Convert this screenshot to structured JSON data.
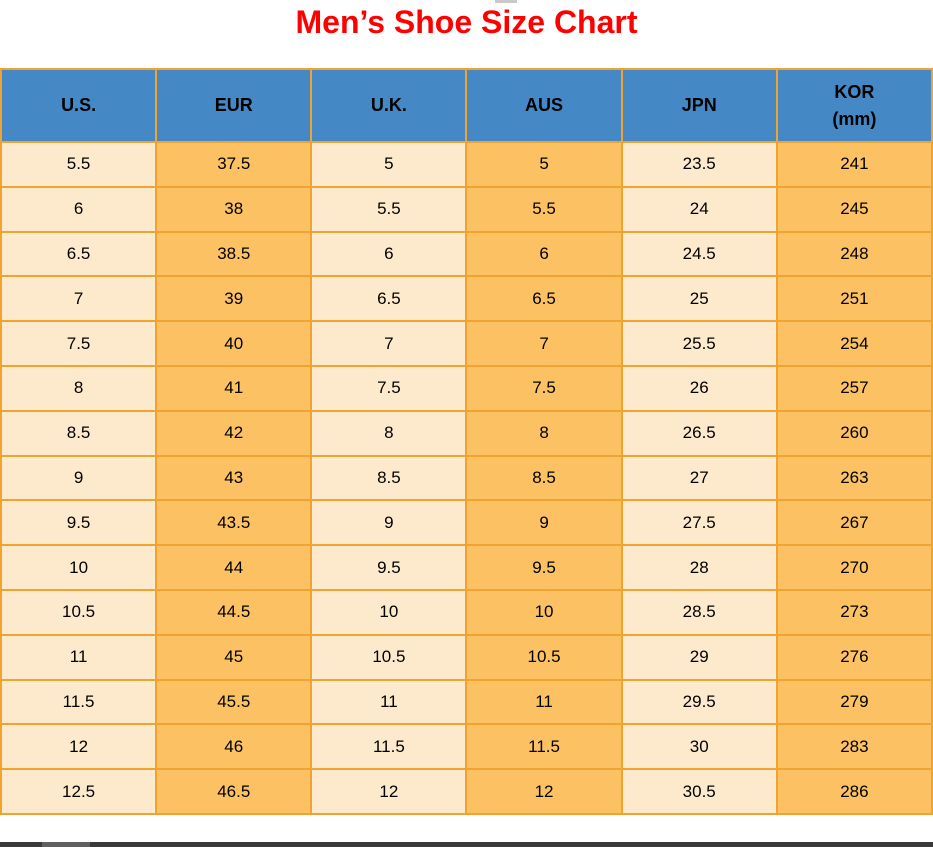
{
  "title": "Men’s Shoe Size Chart",
  "colors": {
    "title_red": "#ff0000",
    "header_bg": "#4489c6",
    "border": "#f0a330",
    "cream_column": "#fdeacd",
    "orange_column": "#fcc163",
    "text": "#000000",
    "scrollbar_track": "#3a3a3a",
    "scrollbar_thumb": "#606060"
  },
  "chart_data": {
    "type": "table",
    "title": "Men’s Shoe Size Chart",
    "columns": [
      "U.S.",
      "EUR",
      "U.K.",
      "AUS",
      "JPN",
      "KOR (mm)"
    ],
    "header_lines": [
      [
        "U.S."
      ],
      [
        "EUR"
      ],
      [
        "U.K."
      ],
      [
        "AUS"
      ],
      [
        "JPN"
      ],
      [
        "KOR",
        "(mm)"
      ]
    ],
    "rows": [
      [
        "5.5",
        "37.5",
        "5",
        "5",
        "23.5",
        "241"
      ],
      [
        "6",
        "38",
        "5.5",
        "5.5",
        "24",
        "245"
      ],
      [
        "6.5",
        "38.5",
        "6",
        "6",
        "24.5",
        "248"
      ],
      [
        "7",
        "39",
        "6.5",
        "6.5",
        "25",
        "251"
      ],
      [
        "7.5",
        "40",
        "7",
        "7",
        "25.5",
        "254"
      ],
      [
        "8",
        "41",
        "7.5",
        "7.5",
        "26",
        "257"
      ],
      [
        "8.5",
        "42",
        "8",
        "8",
        "26.5",
        "260"
      ],
      [
        "9",
        "43",
        "8.5",
        "8.5",
        "27",
        "263"
      ],
      [
        "9.5",
        "43.5",
        "9",
        "9",
        "27.5",
        "267"
      ],
      [
        "10",
        "44",
        "9.5",
        "9.5",
        "28",
        "270"
      ],
      [
        "10.5",
        "44.5",
        "10",
        "10",
        "28.5",
        "273"
      ],
      [
        "11",
        "45",
        "10.5",
        "10.5",
        "29",
        "276"
      ],
      [
        "11.5",
        "45.5",
        "11",
        "11",
        "29.5",
        "279"
      ],
      [
        "12",
        "46",
        "11.5",
        "11.5",
        "30",
        "283"
      ],
      [
        "12.5",
        "46.5",
        "12",
        "12",
        "30.5",
        "286"
      ]
    ],
    "layout_hints": {
      "column_striping": "alternating cream/orange by column",
      "header_style": "blue background, bold black text",
      "grid": true
    }
  }
}
